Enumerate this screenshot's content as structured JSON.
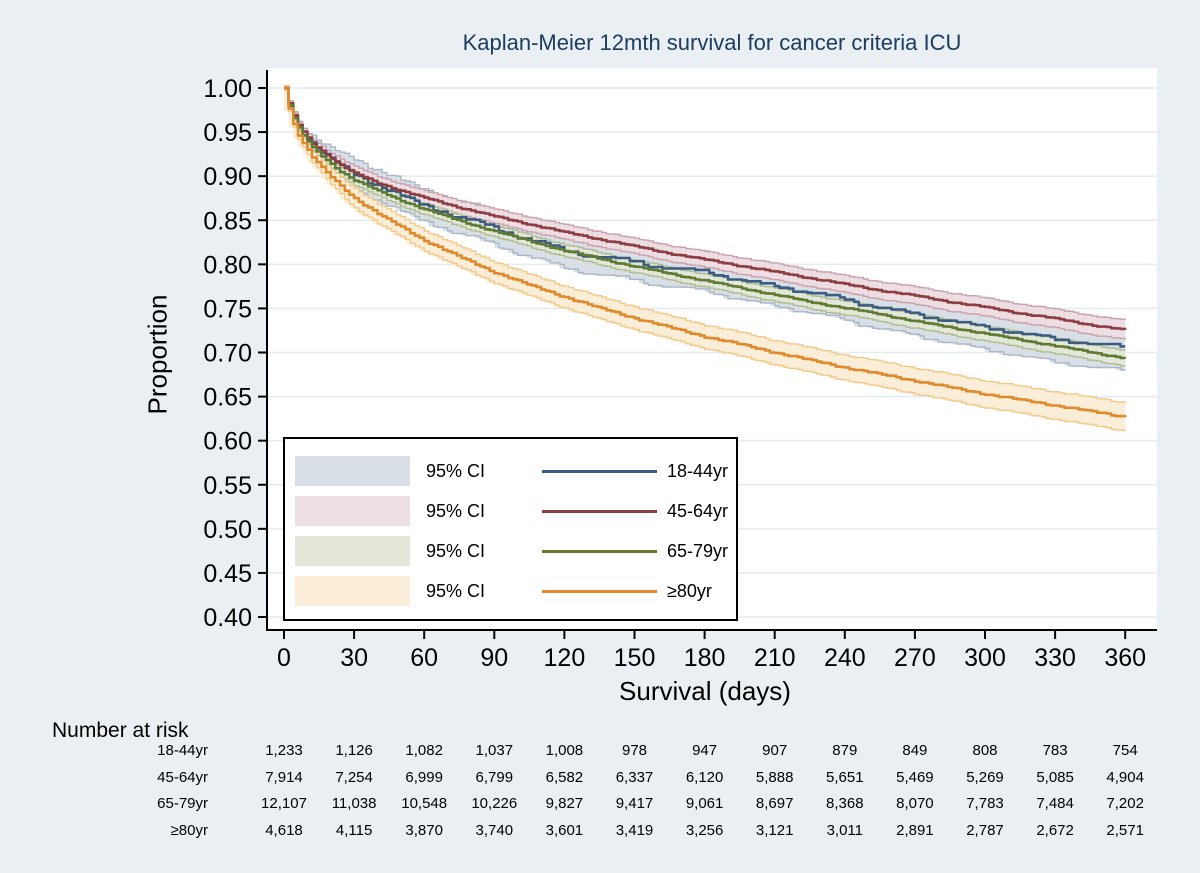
{
  "page": {
    "background": "#e9eff2",
    "plot_background": "#ffffff",
    "gridline_color": "#e3ecf2"
  },
  "chart": {
    "title": "Kaplan-Meier 12mth survival for cancer criteria ICU",
    "title_color": "#1d3d60",
    "ylabel": "Proportion",
    "xlabel": "Survival (days)"
  },
  "chart_data": {
    "type": "line",
    "title": "Kaplan-Meier 12mth survival for cancer criteria ICU",
    "xlabel": "Survival (days)",
    "ylabel": "Proportion",
    "xlim": [
      0,
      362
    ],
    "ylim": [
      0.4,
      1.0
    ],
    "x_ticks": [
      0,
      30,
      60,
      90,
      120,
      150,
      180,
      210,
      240,
      270,
      300,
      330,
      360
    ],
    "y_ticks": [
      "1.00",
      "0.95",
      "0.90",
      "0.85",
      "0.80",
      "0.75",
      "0.70",
      "0.65",
      "0.60",
      "0.55",
      "0.50",
      "0.45",
      "0.40"
    ],
    "grid": true,
    "legend_position": "inside-lower-left",
    "ci_label": "95% CI",
    "series": [
      {
        "name": "18-44yr",
        "line_color": "#3c5d81",
        "band_fill": "#d9dfe6",
        "band_edge": "#a9b7c6",
        "ci_halfwidth": {
          "day30": 0.017,
          "day360": 0.027
        },
        "points": [
          [
            0,
            1.0
          ],
          [
            2,
            0.98
          ],
          [
            5,
            0.963
          ],
          [
            9,
            0.948
          ],
          [
            14,
            0.934
          ],
          [
            20,
            0.921
          ],
          [
            26,
            0.911
          ],
          [
            30,
            0.905
          ],
          [
            36,
            0.897
          ],
          [
            42,
            0.89
          ],
          [
            50,
            0.88
          ],
          [
            58,
            0.871
          ],
          [
            64,
            0.866
          ],
          [
            72,
            0.858
          ],
          [
            80,
            0.852
          ],
          [
            88,
            0.846
          ],
          [
            96,
            0.838
          ],
          [
            104,
            0.831
          ],
          [
            112,
            0.825
          ],
          [
            118,
            0.82
          ],
          [
            126,
            0.815
          ],
          [
            134,
            0.812
          ],
          [
            142,
            0.809
          ],
          [
            150,
            0.806
          ],
          [
            158,
            0.801
          ],
          [
            166,
            0.799
          ],
          [
            174,
            0.797
          ],
          [
            182,
            0.794
          ],
          [
            190,
            0.788
          ],
          [
            198,
            0.783
          ],
          [
            206,
            0.78
          ],
          [
            214,
            0.777
          ],
          [
            222,
            0.772
          ],
          [
            230,
            0.768
          ],
          [
            238,
            0.765
          ],
          [
            246,
            0.759
          ],
          [
            254,
            0.754
          ],
          [
            262,
            0.75
          ],
          [
            270,
            0.747
          ],
          [
            278,
            0.742
          ],
          [
            286,
            0.738
          ],
          [
            294,
            0.734
          ],
          [
            302,
            0.731
          ],
          [
            310,
            0.727
          ],
          [
            318,
            0.723
          ],
          [
            326,
            0.72
          ],
          [
            334,
            0.717
          ],
          [
            342,
            0.714
          ],
          [
            350,
            0.712
          ],
          [
            360,
            0.71
          ]
        ]
      },
      {
        "name": "45-64yr",
        "line_color": "#8e3d40",
        "band_fill": "#ecdee2",
        "band_edge": "#c9a2ad",
        "ci_halfwidth": {
          "day30": 0.0075,
          "day360": 0.011
        },
        "points": [
          [
            0,
            1.0
          ],
          [
            3,
            0.974
          ],
          [
            7,
            0.954
          ],
          [
            12,
            0.938
          ],
          [
            18,
            0.925
          ],
          [
            24,
            0.913
          ],
          [
            30,
            0.904
          ],
          [
            40,
            0.893
          ],
          [
            50,
            0.884
          ],
          [
            60,
            0.876
          ],
          [
            75,
            0.865
          ],
          [
            90,
            0.855
          ],
          [
            105,
            0.846
          ],
          [
            120,
            0.837
          ],
          [
            135,
            0.829
          ],
          [
            150,
            0.821
          ],
          [
            165,
            0.813
          ],
          [
            180,
            0.806
          ],
          [
            195,
            0.799
          ],
          [
            210,
            0.792
          ],
          [
            225,
            0.785
          ],
          [
            240,
            0.778
          ],
          [
            255,
            0.771
          ],
          [
            270,
            0.765
          ],
          [
            285,
            0.758
          ],
          [
            300,
            0.752
          ],
          [
            315,
            0.745
          ],
          [
            330,
            0.739
          ],
          [
            345,
            0.732
          ],
          [
            360,
            0.726
          ]
        ]
      },
      {
        "name": "65-79yr",
        "line_color": "#5e7a33",
        "band_fill": "#e3e7d8",
        "band_edge": "#adbc94",
        "ci_halfwidth": {
          "day30": 0.006,
          "day360": 0.009
        },
        "points": [
          [
            0,
            1.0
          ],
          [
            3,
            0.971
          ],
          [
            7,
            0.95
          ],
          [
            12,
            0.933
          ],
          [
            18,
            0.919
          ],
          [
            24,
            0.906
          ],
          [
            30,
            0.896
          ],
          [
            40,
            0.884
          ],
          [
            50,
            0.873
          ],
          [
            60,
            0.863
          ],
          [
            75,
            0.85
          ],
          [
            90,
            0.838
          ],
          [
            105,
            0.827
          ],
          [
            120,
            0.816
          ],
          [
            135,
            0.807
          ],
          [
            150,
            0.798
          ],
          [
            165,
            0.79
          ],
          [
            180,
            0.782
          ],
          [
            195,
            0.774
          ],
          [
            210,
            0.766
          ],
          [
            225,
            0.758
          ],
          [
            240,
            0.751
          ],
          [
            255,
            0.744
          ],
          [
            270,
            0.736
          ],
          [
            285,
            0.729
          ],
          [
            300,
            0.722
          ],
          [
            315,
            0.715
          ],
          [
            330,
            0.708
          ],
          [
            345,
            0.701
          ],
          [
            360,
            0.694
          ]
        ]
      },
      {
        "name": "≥80yr",
        "line_color": "#e08a2b",
        "band_fill": "#fbeed8",
        "band_edge": "#f3c98b",
        "ci_halfwidth": {
          "day30": 0.011,
          "day360": 0.016
        },
        "points": [
          [
            0,
            1.0
          ],
          [
            3,
            0.965
          ],
          [
            7,
            0.942
          ],
          [
            12,
            0.922
          ],
          [
            18,
            0.905
          ],
          [
            24,
            0.89
          ],
          [
            30,
            0.876
          ],
          [
            40,
            0.858
          ],
          [
            50,
            0.843
          ],
          [
            60,
            0.828
          ],
          [
            75,
            0.809
          ],
          [
            90,
            0.792
          ],
          [
            105,
            0.777
          ],
          [
            120,
            0.764
          ],
          [
            135,
            0.751
          ],
          [
            150,
            0.74
          ],
          [
            165,
            0.729
          ],
          [
            180,
            0.719
          ],
          [
            195,
            0.71
          ],
          [
            210,
            0.701
          ],
          [
            225,
            0.692
          ],
          [
            240,
            0.684
          ],
          [
            255,
            0.676
          ],
          [
            270,
            0.669
          ],
          [
            285,
            0.661
          ],
          [
            300,
            0.654
          ],
          [
            315,
            0.647
          ],
          [
            330,
            0.641
          ],
          [
            345,
            0.634
          ],
          [
            360,
            0.628
          ]
        ]
      }
    ]
  },
  "risk_table": {
    "heading": "Number at risk",
    "times": [
      0,
      30,
      60,
      90,
      120,
      150,
      180,
      210,
      240,
      270,
      300,
      330,
      360
    ],
    "rows": [
      {
        "label": "18-44yr",
        "values": [
          "1,233",
          "1,126",
          "1,082",
          "1,037",
          "1,008",
          "978",
          "947",
          "907",
          "879",
          "849",
          "808",
          "783",
          "754"
        ]
      },
      {
        "label": "45-64yr",
        "values": [
          "7,914",
          "7,254",
          "6,999",
          "6,799",
          "6,582",
          "6,337",
          "6,120",
          "5,888",
          "5,651",
          "5,469",
          "5,269",
          "5,085",
          "4,904"
        ]
      },
      {
        "label": "65-79yr",
        "values": [
          "12,107",
          "11,038",
          "10,548",
          "10,226",
          "9,827",
          "9,417",
          "9,061",
          "8,697",
          "8,368",
          "8,070",
          "7,783",
          "7,484",
          "7,202"
        ]
      },
      {
        "label": "≥80yr",
        "values": [
          "4,618",
          "4,115",
          "3,870",
          "3,740",
          "3,601",
          "3,419",
          "3,256",
          "3,121",
          "3,011",
          "2,891",
          "2,787",
          "2,672",
          "2,571"
        ]
      }
    ]
  }
}
